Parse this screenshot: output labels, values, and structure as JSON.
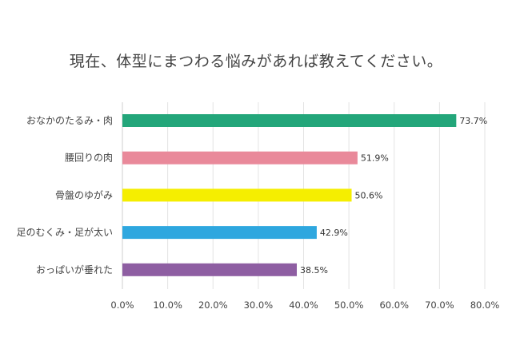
{
  "chart_data": {
    "type": "bar",
    "orientation": "horizontal",
    "title": "現在、体型にまつわる悩みがあれば教えてください。",
    "categories": [
      "おなかのたるみ・肉",
      "腰回りの肉",
      "骨盤のゆがみ",
      "足のむくみ・足が太い",
      "おっぱいが垂れた"
    ],
    "values": [
      73.7,
      51.9,
      50.6,
      42.9,
      38.5
    ],
    "value_labels": [
      "73.7%",
      "51.9%",
      "50.6%",
      "42.9%",
      "38.5%"
    ],
    "colors": [
      "#23a67a",
      "#e9899a",
      "#f5ee00",
      "#2ea7df",
      "#8e5ea2"
    ],
    "xlim": [
      0,
      80
    ],
    "xticks": [
      "0.0%",
      "10.0%",
      "20.0%",
      "30.0%",
      "40.0%",
      "50.0%",
      "60.0%",
      "70.0%",
      "80.0%"
    ],
    "grid": true,
    "legend": "none",
    "xlabel": "",
    "ylabel": ""
  }
}
